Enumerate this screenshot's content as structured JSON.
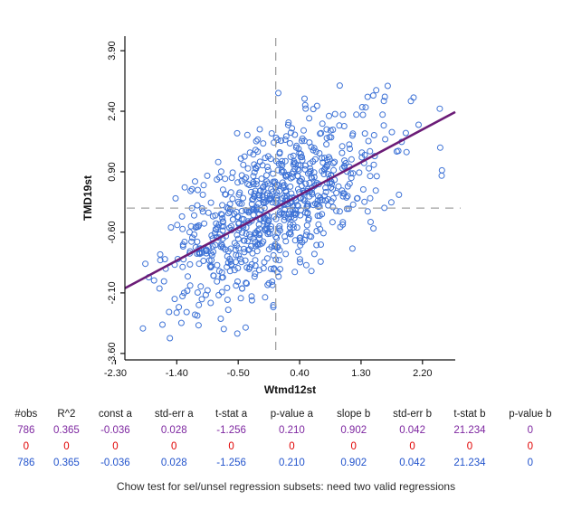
{
  "figure": {
    "caption": "Chow test for sel/unsel regression subsets: need two valid regressions"
  },
  "chart_data": {
    "type": "scatter",
    "title": "",
    "xlabel": "Wtmd12st",
    "ylabel": "TMD19st",
    "x_ticks": [
      -2.3,
      -1.4,
      -0.5,
      0.4,
      1.3,
      2.2
    ],
    "x_tick_labels": [
      "-2.30",
      "-1.40",
      "-0.50",
      "0.40",
      "1.30",
      "2.20"
    ],
    "y_ticks": [
      -3.6,
      -2.1,
      -0.6,
      0.9,
      2.4,
      3.9
    ],
    "y_tick_labels": [
      "-3.60",
      "-2.10",
      "-0.60",
      "0.90",
      "2.40",
      "3.90"
    ],
    "xlim": [
      -2.16,
      2.68
    ],
    "ylim": [
      -3.76,
      4.26
    ],
    "grid": false,
    "legend": "none",
    "n_points": 786,
    "point_style": {
      "shape": "open-circle",
      "color": "#3d72d6",
      "radius": 3
    },
    "regression_line": {
      "intercept": -0.036,
      "slope": 0.902,
      "color": "#6b1c77",
      "width": 2.6
    },
    "mean_reference_lines": {
      "x": 0.05,
      "y": 0.0,
      "style": "dashed",
      "color": "#a0a0a0"
    },
    "scatter_generator": {
      "note": "786 unlabeled points; cloud reconstructed from shown regression stats (R^2=0.365, slope=0.902, intercept=-0.036)",
      "seed": 7,
      "n": 786,
      "x_mean": 0.05,
      "x_sd": 0.78,
      "resid_sd": 0.92
    }
  },
  "stats_table": {
    "headers": [
      "#obs",
      "R^2",
      "const a",
      "std-err a",
      "t-stat a",
      "p-value a",
      "slope b",
      "std-err b",
      "t-stat b",
      "p-value b"
    ],
    "rows": [
      {
        "color": "#7d26a0",
        "values": [
          "786",
          "0.365",
          "-0.036",
          "0.028",
          "-1.256",
          "0.210",
          "0.902",
          "0.042",
          "21.234",
          "0"
        ]
      },
      {
        "color": "#e00000",
        "values": [
          "0",
          "0",
          "0",
          "0",
          "0",
          "0",
          "0",
          "0",
          "0",
          "0"
        ]
      },
      {
        "color": "#2253cc",
        "values": [
          "786",
          "0.365",
          "-0.036",
          "0.028",
          "-1.256",
          "0.210",
          "0.902",
          "0.042",
          "21.234",
          "0"
        ]
      }
    ]
  }
}
